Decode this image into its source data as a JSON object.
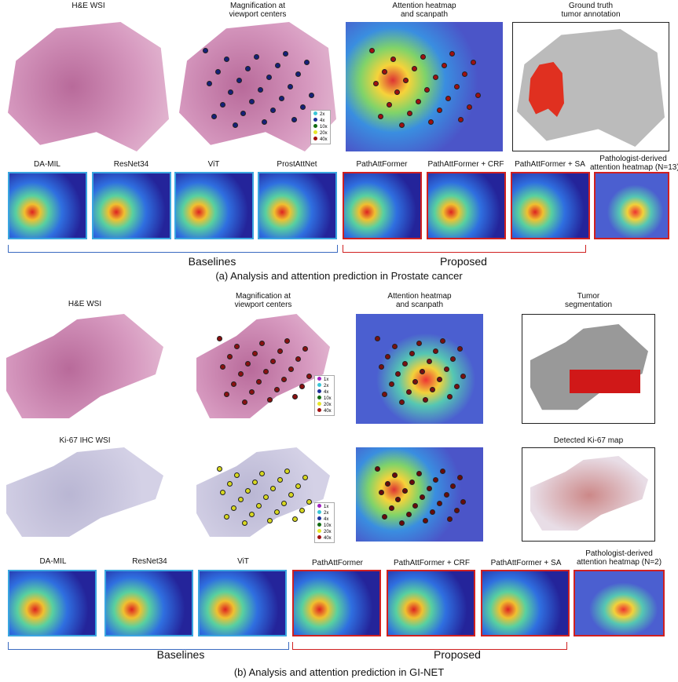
{
  "panel_a": {
    "top_titles": [
      [
        "H&E WSI"
      ],
      [
        "Magnification at",
        "viewport centers"
      ],
      [
        "Attention heatmap",
        "and scanpath"
      ],
      [
        "Ground truth",
        "tumor annotation"
      ]
    ],
    "legend": [
      "2x",
      "4x",
      "10x",
      "20x",
      "40x"
    ],
    "methods": [
      "DA-MIL",
      "ResNet34",
      "ViT",
      "ProstAttNet",
      "PathAttFormer",
      "PathAttFormer + CRF",
      "PathAttFormer + SA"
    ],
    "pathologist": [
      "Pathologist-derived",
      "attention heatmap (N=13)"
    ],
    "baselines": "Baselines",
    "proposed": "Proposed",
    "caption": "(a) Analysis and attention prediction in Prostate cancer"
  },
  "panel_b": {
    "top_titles": [
      [
        "H&E WSI"
      ],
      [
        "Magnification at",
        "viewport centers"
      ],
      [
        "Attention heatmap",
        "and scanpath"
      ],
      [
        "Tumor",
        "segmentation"
      ]
    ],
    "mid_titles": [
      "Ki-67 IHC WSI",
      "Detected Ki-67 map"
    ],
    "legend": [
      "1x",
      "2x",
      "4x",
      "10x",
      "20x",
      "40x"
    ],
    "methods": [
      "DA-MIL",
      "ResNet34",
      "ViT",
      "PathAttFormer",
      "PathAttFormer + CRF",
      "PathAttFormer +  SA"
    ],
    "pathologist": [
      "Pathologist-derived",
      "attention heatmap (N=2)"
    ],
    "baselines": "Baselines",
    "proposed": "Proposed",
    "caption": "(b) Analysis and attention prediction in GI-NET"
  }
}
